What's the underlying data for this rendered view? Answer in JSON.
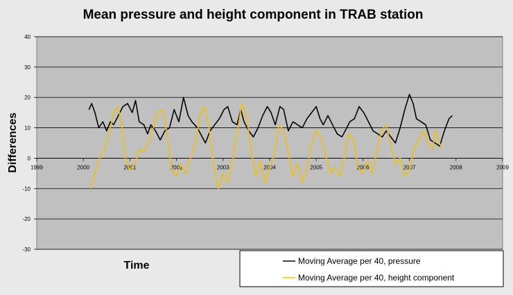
{
  "chart_data": {
    "type": "line",
    "title": "Mean pressure  and height component in TRAB station",
    "xlabel": "Time",
    "ylabel": "Differences",
    "xlim": [
      1999,
      2009
    ],
    "ylim": [
      -30,
      40
    ],
    "x_ticks": [
      "1999",
      "2000",
      "2001",
      "2002",
      "2003",
      "2004",
      "2005",
      "2006",
      "2007",
      "2008",
      "2009"
    ],
    "y_ticks": [
      "-30",
      "-20",
      "-10",
      "0",
      "10",
      "20",
      "30",
      "40"
    ],
    "grid": true,
    "legend_position": "bottom-right",
    "plot_background": "#c0c0c0",
    "series": [
      {
        "name": "Moving Average per 40, pressure",
        "color": "#000000",
        "points": [
          [
            2000.12,
            16
          ],
          [
            2000.18,
            18
          ],
          [
            2000.25,
            15
          ],
          [
            2000.33,
            10
          ],
          [
            2000.42,
            12
          ],
          [
            2000.5,
            9
          ],
          [
            2000.58,
            12
          ],
          [
            2000.65,
            11
          ],
          [
            2000.75,
            14
          ],
          [
            2000.85,
            17
          ],
          [
            2000.95,
            18
          ],
          [
            2001.05,
            15
          ],
          [
            2001.12,
            19
          ],
          [
            2001.2,
            12
          ],
          [
            2001.3,
            11
          ],
          [
            2001.38,
            8
          ],
          [
            2001.45,
            11
          ],
          [
            2001.55,
            9
          ],
          [
            2001.65,
            6
          ],
          [
            2001.75,
            9
          ],
          [
            2001.85,
            10
          ],
          [
            2001.95,
            16
          ],
          [
            2002.05,
            12
          ],
          [
            2002.15,
            20
          ],
          [
            2002.25,
            14
          ],
          [
            2002.33,
            12
          ],
          [
            2002.45,
            10
          ],
          [
            2002.55,
            7
          ],
          [
            2002.62,
            5
          ],
          [
            2002.72,
            9
          ],
          [
            2002.82,
            11
          ],
          [
            2002.92,
            13
          ],
          [
            2003.02,
            16
          ],
          [
            2003.1,
            17
          ],
          [
            2003.2,
            12
          ],
          [
            2003.3,
            11
          ],
          [
            2003.38,
            16
          ],
          [
            2003.45,
            12
          ],
          [
            2003.55,
            9
          ],
          [
            2003.65,
            7
          ],
          [
            2003.75,
            10
          ],
          [
            2003.85,
            14
          ],
          [
            2003.95,
            17
          ],
          [
            2004.03,
            15
          ],
          [
            2004.12,
            11
          ],
          [
            2004.22,
            17
          ],
          [
            2004.3,
            16
          ],
          [
            2004.4,
            9
          ],
          [
            2004.5,
            12
          ],
          [
            2004.6,
            11
          ],
          [
            2004.7,
            10
          ],
          [
            2004.8,
            13
          ],
          [
            2004.9,
            15
          ],
          [
            2005.0,
            17
          ],
          [
            2005.08,
            13
          ],
          [
            2005.15,
            11
          ],
          [
            2005.25,
            14
          ],
          [
            2005.35,
            11
          ],
          [
            2005.45,
            8
          ],
          [
            2005.55,
            7
          ],
          [
            2005.62,
            9
          ],
          [
            2005.72,
            12
          ],
          [
            2005.82,
            13
          ],
          [
            2005.92,
            17
          ],
          [
            2006.02,
            15
          ],
          [
            2006.12,
            12
          ],
          [
            2006.22,
            9
          ],
          [
            2006.32,
            8
          ],
          [
            2006.42,
            7
          ],
          [
            2006.5,
            9
          ],
          [
            2006.6,
            7
          ],
          [
            2006.7,
            5
          ],
          [
            2006.8,
            10
          ],
          [
            2006.9,
            16
          ],
          [
            2007.0,
            21
          ],
          [
            2007.08,
            18
          ],
          [
            2007.15,
            13
          ],
          [
            2007.25,
            12
          ],
          [
            2007.35,
            11
          ],
          [
            2007.45,
            6
          ],
          [
            2007.55,
            5
          ],
          [
            2007.65,
            4
          ],
          [
            2007.75,
            9
          ],
          [
            2007.85,
            13
          ],
          [
            2007.92,
            14
          ]
        ]
      },
      {
        "name": "Moving Average per 40, height component",
        "color": "#f2c200",
        "points": [
          [
            2000.15,
            -10
          ],
          [
            2000.25,
            -5
          ],
          [
            2000.35,
            0
          ],
          [
            2000.45,
            3
          ],
          [
            2000.55,
            8
          ],
          [
            2000.65,
            15
          ],
          [
            2000.75,
            17
          ],
          [
            2000.82,
            11
          ],
          [
            2000.9,
            0
          ],
          [
            2001.0,
            -4
          ],
          [
            2001.1,
            -2
          ],
          [
            2001.2,
            3
          ],
          [
            2001.3,
            2
          ],
          [
            2001.4,
            5
          ],
          [
            2001.5,
            10
          ],
          [
            2001.6,
            15
          ],
          [
            2001.7,
            16
          ],
          [
            2001.8,
            8
          ],
          [
            2001.9,
            -4
          ],
          [
            2002.0,
            -6
          ],
          [
            2002.1,
            -2
          ],
          [
            2002.2,
            -5
          ],
          [
            2002.3,
            0
          ],
          [
            2002.4,
            4
          ],
          [
            2002.5,
            14
          ],
          [
            2002.6,
            17
          ],
          [
            2002.7,
            10
          ],
          [
            2002.8,
            -3
          ],
          [
            2002.9,
            -10
          ],
          [
            2003.0,
            -5
          ],
          [
            2003.1,
            -8
          ],
          [
            2003.2,
            -1
          ],
          [
            2003.3,
            8
          ],
          [
            2003.4,
            18
          ],
          [
            2003.5,
            14
          ],
          [
            2003.6,
            3
          ],
          [
            2003.7,
            -6
          ],
          [
            2003.8,
            -1
          ],
          [
            2003.9,
            -8
          ],
          [
            2004.0,
            -3
          ],
          [
            2004.1,
            1
          ],
          [
            2004.2,
            11
          ],
          [
            2004.3,
            9
          ],
          [
            2004.4,
            2
          ],
          [
            2004.5,
            -6
          ],
          [
            2004.6,
            -2
          ],
          [
            2004.7,
            -8
          ],
          [
            2004.8,
            -4
          ],
          [
            2004.9,
            5
          ],
          [
            2005.0,
            9
          ],
          [
            2005.1,
            7
          ],
          [
            2005.2,
            1
          ],
          [
            2005.3,
            -5
          ],
          [
            2005.4,
            -3
          ],
          [
            2005.5,
            -6
          ],
          [
            2005.6,
            0
          ],
          [
            2005.7,
            8
          ],
          [
            2005.8,
            6
          ],
          [
            2005.9,
            -3
          ],
          [
            2006.0,
            -5
          ],
          [
            2006.1,
            -1
          ],
          [
            2006.2,
            -5
          ],
          [
            2006.3,
            2
          ],
          [
            2006.4,
            9
          ],
          [
            2006.5,
            11
          ],
          [
            2006.6,
            4
          ],
          [
            2006.7,
            -2
          ],
          [
            2006.8,
            0
          ],
          [
            2006.9,
            -6
          ],
          [
            2007.0,
            -4
          ],
          [
            2007.1,
            3
          ],
          [
            2007.2,
            6
          ],
          [
            2007.3,
            9
          ],
          [
            2007.4,
            5
          ],
          [
            2007.5,
            3
          ],
          [
            2007.55,
            9
          ],
          [
            2007.62,
            6
          ],
          [
            2007.7,
            3
          ]
        ]
      }
    ]
  }
}
